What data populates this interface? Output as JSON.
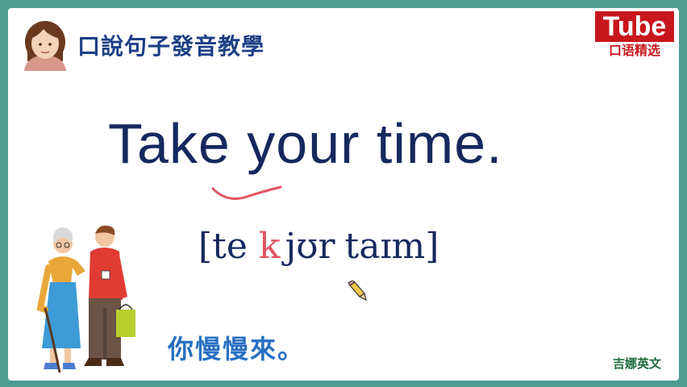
{
  "header": {
    "title": "口說句子發音教學",
    "teacher_icon": "teacher-avatar-icon"
  },
  "logo": {
    "top": "Tube",
    "bottom": "口语精选",
    "color": "#c7161c"
  },
  "lesson": {
    "phrase": "Take your time.",
    "phonetic": {
      "part1": "[te",
      "linked": "k",
      "part2": "jʊr",
      "part3": "taɪm]",
      "linked_color": "#e2535f"
    },
    "translation": "你慢慢來。"
  },
  "illustration": {
    "icon": "elderly-woman-with-helper-icon"
  },
  "footer": {
    "credit": "吉娜英文"
  },
  "colors": {
    "frame": "#4e9b92",
    "title": "#1d3f86",
    "phrase": "#15285e",
    "translation": "#2870c2",
    "credit": "#1d6b3a"
  }
}
